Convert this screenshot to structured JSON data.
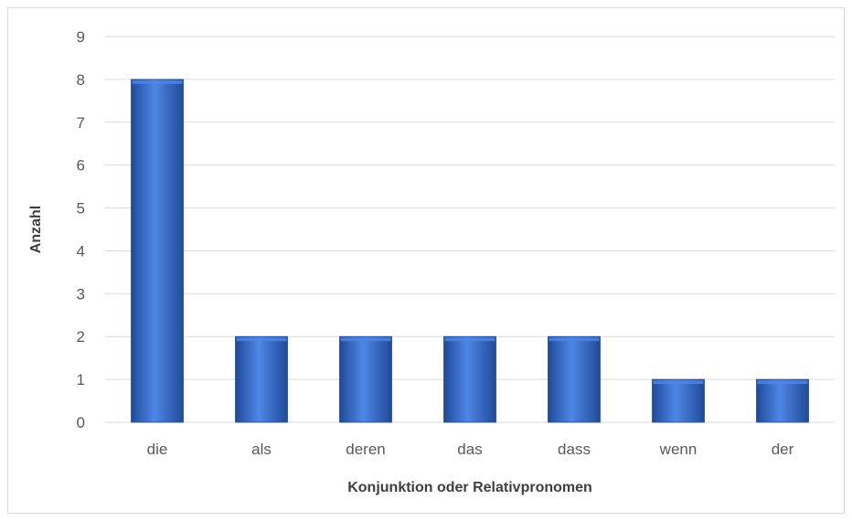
{
  "chart_data": {
    "type": "bar",
    "categories": [
      "die",
      "als",
      "deren",
      "das",
      "dass",
      "wenn",
      "der"
    ],
    "values": [
      8,
      2,
      2,
      2,
      2,
      1,
      1
    ],
    "title": "",
    "xlabel": "Konjunktion oder Relativpronomen",
    "ylabel": "Anzahl",
    "ylim": [
      0,
      9
    ],
    "yticks": [
      "0",
      "1",
      "2",
      "3",
      "4",
      "5",
      "6",
      "7",
      "8",
      "9"
    ],
    "grid": true,
    "legend": "none",
    "colors": {
      "bar": "#2e64c8",
      "bar_light": "#4f86e6",
      "bar_dark": "#1f4a9a",
      "grid": "#d9d9d9"
    }
  }
}
